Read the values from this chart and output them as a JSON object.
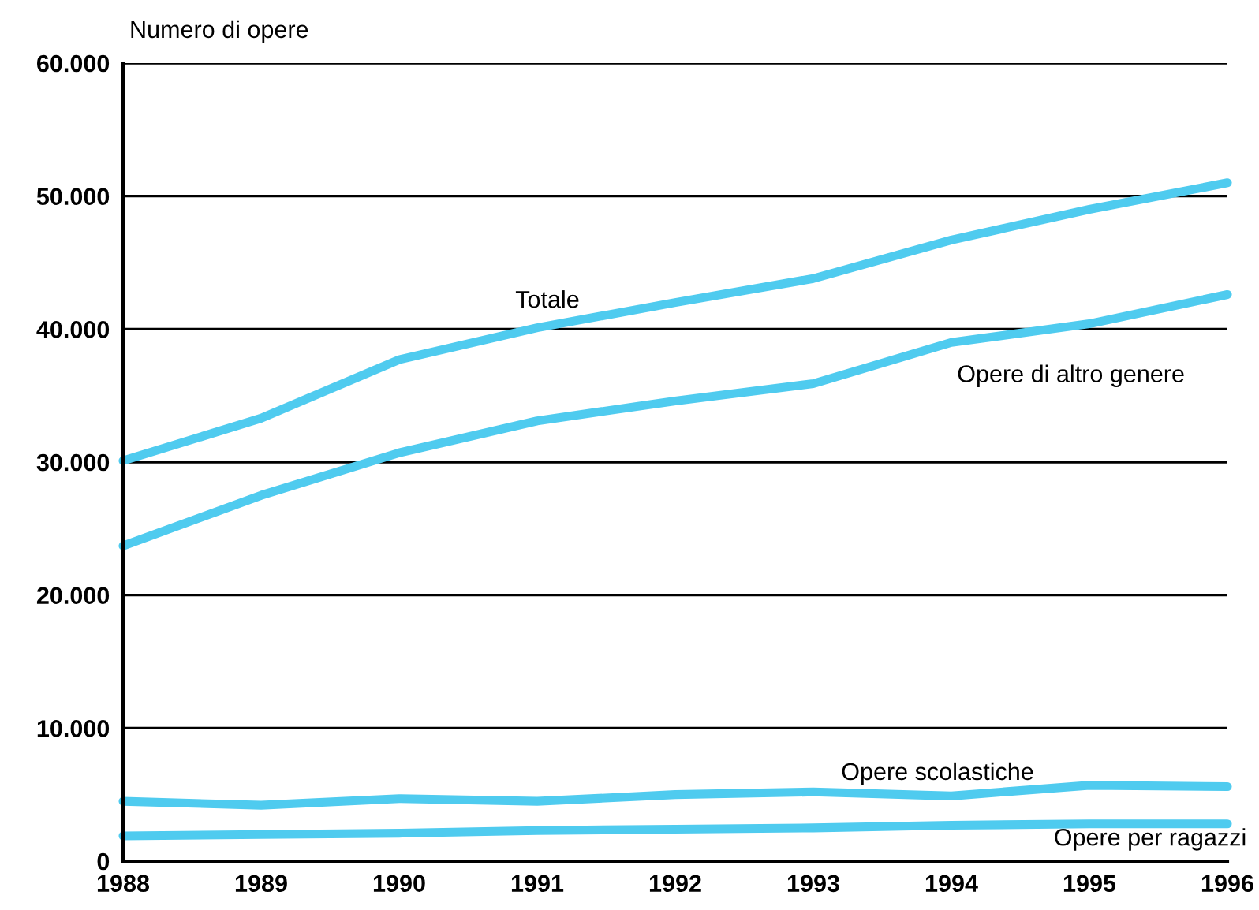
{
  "chart_data": {
    "type": "line",
    "ylabel": "Numero di opere",
    "x": [
      1988,
      1989,
      1990,
      1991,
      1992,
      1993,
      1994,
      1995,
      1996
    ],
    "series": [
      {
        "name": "Totale",
        "color": "#4fcbef",
        "values": [
          30100,
          33300,
          37700,
          40100,
          42000,
          43800,
          46700,
          49000,
          51000
        ]
      },
      {
        "name": "Opere di altro genere",
        "color": "#4fcbef",
        "values": [
          23700,
          27500,
          30700,
          33100,
          34600,
          35900,
          39000,
          40400,
          42600
        ]
      },
      {
        "name": "Opere scolastiche",
        "color": "#4fcbef",
        "values": [
          4500,
          4200,
          4700,
          4500,
          5000,
          5200,
          4900,
          5700,
          5600
        ]
      },
      {
        "name": "Opere per ragazzi",
        "color": "#4fcbef",
        "values": [
          1900,
          2000,
          2100,
          2300,
          2400,
          2500,
          2700,
          2800,
          2800
        ]
      }
    ],
    "xlim": [
      1988,
      1996
    ],
    "xticks": [
      1988,
      1989,
      1990,
      1991,
      1992,
      1993,
      1994,
      1995,
      1996
    ],
    "ylim": [
      0,
      60000
    ],
    "yticks": [
      0,
      {
        "value": 10000,
        "label": "10.000"
      },
      {
        "value": 20000,
        "label": "20.000"
      },
      {
        "value": 30000,
        "label": "30.000"
      },
      {
        "value": 40000,
        "label": "40.000"
      },
      {
        "value": 50000,
        "label": "50.000"
      },
      {
        "value": 60000,
        "label": "60.000"
      }
    ],
    "grid": "y",
    "legend": false,
    "marker": "none",
    "line_style": "solid"
  }
}
